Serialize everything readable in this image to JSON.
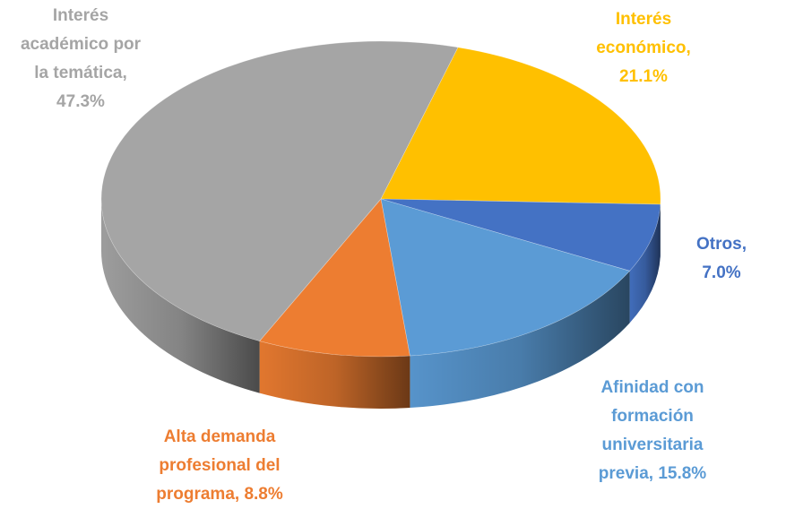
{
  "chart_data": {
    "type": "pie",
    "categories": [
      "Interés económico",
      "Otros",
      "Afinidad con formación universitaria previa",
      "Alta demanda profesional del programa",
      "Interés académico por la temática"
    ],
    "values": [
      21.1,
      7.0,
      15.8,
      8.8,
      47.3
    ],
    "value_labels": [
      "Interés\neconómico,\n21.1%",
      "Otros, 7.0%",
      "Afinidad con\nformación\nuniversitaria\nprevia, 15.8%",
      "Alta demanda\nprofesional del\nprograma, 8.8%",
      "Interés\nacadémico por\nla temática,\n47.3%"
    ],
    "colors": [
      "#FFC000",
      "#4472C4",
      "#5B9BD5",
      "#ED7D31",
      "#A5A5A5"
    ]
  }
}
